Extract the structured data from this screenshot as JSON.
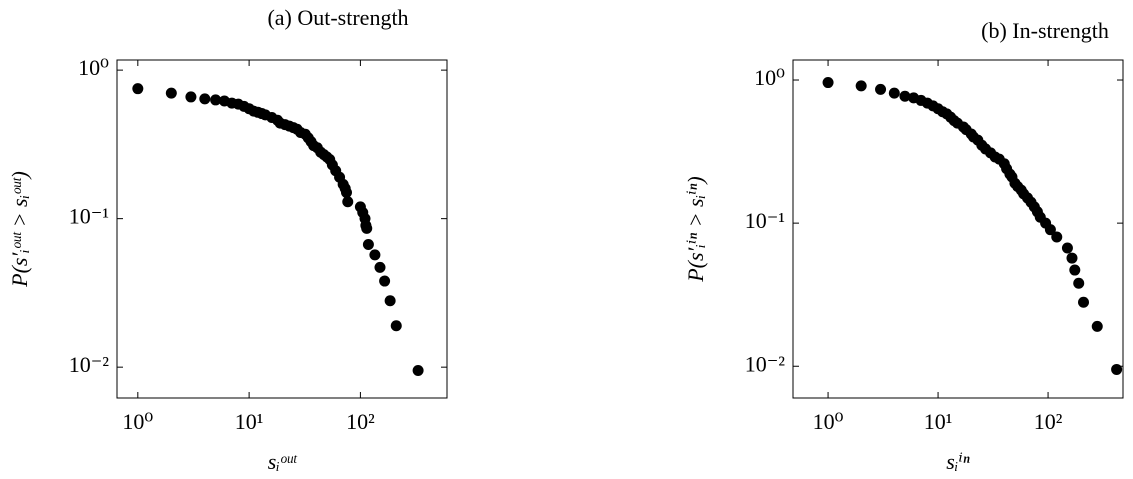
{
  "chart_data": [
    {
      "type": "scatter",
      "title": "(a) Out-strength",
      "xlabel": "sᵢᵒᵘᵗ",
      "ylabel": "P(s′ᵢᵒᵘᵗ > sᵢᵒᵘᵗ)",
      "xscale": "log",
      "yscale": "log",
      "color": "#000000",
      "xlim": [
        0.65,
        600
      ],
      "ylim": [
        0.0062,
        1.17
      ],
      "xticks": [
        {
          "value": 1,
          "label": "10⁰"
        },
        {
          "value": 10,
          "label": "10¹"
        },
        {
          "value": 100,
          "label": "10²"
        }
      ],
      "yticks": [
        {
          "value": 0.01,
          "label": "10⁻²"
        },
        {
          "value": 0.1,
          "label": "10⁻¹"
        },
        {
          "value": 1,
          "label": "10⁰"
        }
      ],
      "x": [
        1,
        2,
        3,
        4,
        5,
        6,
        7,
        8,
        9,
        10,
        11,
        12,
        13,
        14,
        16,
        18,
        19,
        21,
        23,
        25,
        27,
        29,
        32,
        34,
        36,
        38,
        41,
        44,
        47,
        50,
        53,
        56,
        60,
        65,
        70,
        73,
        75,
        77,
        100,
        105,
        110,
        112,
        114,
        118,
        135,
        150,
        165,
        185,
        210,
        330
      ],
      "values": [
        0.75,
        0.7,
        0.66,
        0.64,
        0.63,
        0.62,
        0.6,
        0.59,
        0.57,
        0.55,
        0.53,
        0.52,
        0.51,
        0.5,
        0.48,
        0.46,
        0.44,
        0.43,
        0.42,
        0.41,
        0.4,
        0.38,
        0.37,
        0.35,
        0.33,
        0.31,
        0.3,
        0.28,
        0.27,
        0.26,
        0.25,
        0.23,
        0.21,
        0.19,
        0.17,
        0.16,
        0.15,
        0.13,
        0.12,
        0.11,
        0.1,
        0.09,
        0.086,
        0.067,
        0.057,
        0.047,
        0.038,
        0.028,
        0.019,
        0.0095
      ]
    },
    {
      "type": "scatter",
      "title": "(b) In-strength",
      "xlabel": "sᵢⁱⁿ",
      "ylabel": "P(s′ᵢⁱⁿ > sᵢⁱⁿ)",
      "xscale": "log",
      "yscale": "log",
      "color": "#000000",
      "xlim": [
        0.48,
        480
      ],
      "ylim": [
        0.006,
        1.38
      ],
      "xticks": [
        {
          "value": 1,
          "label": "10⁰"
        },
        {
          "value": 10,
          "label": "10¹"
        },
        {
          "value": 100,
          "label": "10²"
        }
      ],
      "yticks": [
        {
          "value": 0.01,
          "label": "10⁻²"
        },
        {
          "value": 0.1,
          "label": "10⁻¹"
        },
        {
          "value": 1,
          "label": "10⁰"
        }
      ],
      "x": [
        1,
        2,
        3,
        4,
        5,
        6,
        7,
        8,
        9,
        10,
        11,
        12,
        13,
        14,
        15,
        17,
        18,
        20,
        21,
        23,
        25,
        27,
        30,
        33,
        36,
        40,
        42,
        45,
        47,
        50,
        53,
        57,
        60,
        65,
        70,
        75,
        80,
        85,
        95,
        105,
        120,
        150,
        165,
        175,
        190,
        210,
        280,
        420
      ],
      "values": [
        0.96,
        0.91,
        0.86,
        0.81,
        0.77,
        0.75,
        0.72,
        0.69,
        0.66,
        0.63,
        0.6,
        0.58,
        0.55,
        0.52,
        0.5,
        0.47,
        0.45,
        0.42,
        0.4,
        0.38,
        0.35,
        0.33,
        0.31,
        0.29,
        0.28,
        0.26,
        0.24,
        0.22,
        0.21,
        0.19,
        0.18,
        0.17,
        0.16,
        0.15,
        0.14,
        0.13,
        0.12,
        0.11,
        0.1,
        0.09,
        0.08,
        0.067,
        0.057,
        0.047,
        0.038,
        0.028,
        0.019,
        0.0095
      ]
    }
  ]
}
